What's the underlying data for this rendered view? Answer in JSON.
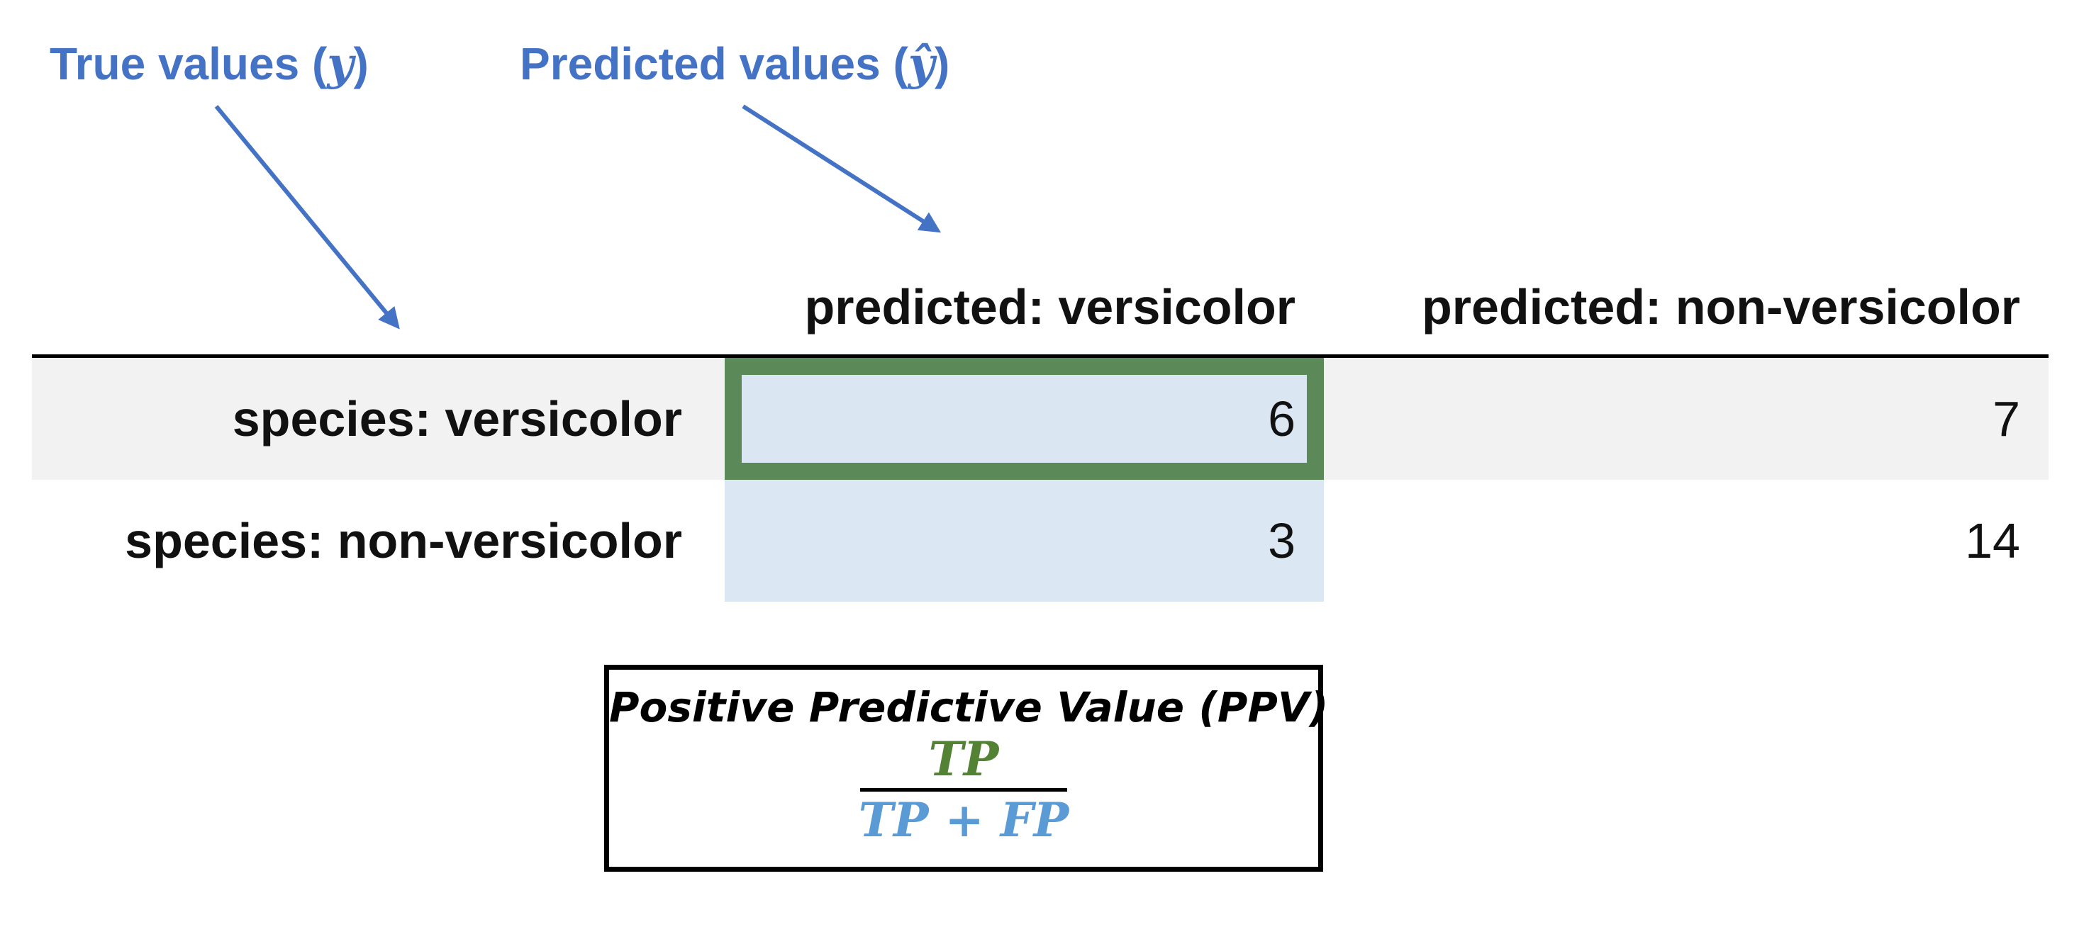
{
  "annotations": {
    "true_values": {
      "text": "True values (",
      "symbol": "y",
      "close": ")"
    },
    "predicted_values": {
      "text": "Predicted values (",
      "symbol": "ŷ",
      "close": ")"
    }
  },
  "matrix": {
    "col_headers": [
      "predicted: versicolor",
      "predicted: non-versicolor"
    ],
    "rows": [
      {
        "label": "species: versicolor",
        "values": [
          "6",
          "7"
        ]
      },
      {
        "label": "species: non-versicolor",
        "values": [
          "3",
          "14"
        ]
      }
    ]
  },
  "formula": {
    "title": "Positive Predictive Value (PPV)",
    "numerator": "TP",
    "denominator": "TP + FP"
  },
  "colors": {
    "annotation_blue": "#4472c4",
    "highlight_green": "#5b8a58",
    "numerator_green": "#548235",
    "denominator_blue": "#5b9bd5",
    "predicted_column_fill": "#dbe6f3"
  }
}
